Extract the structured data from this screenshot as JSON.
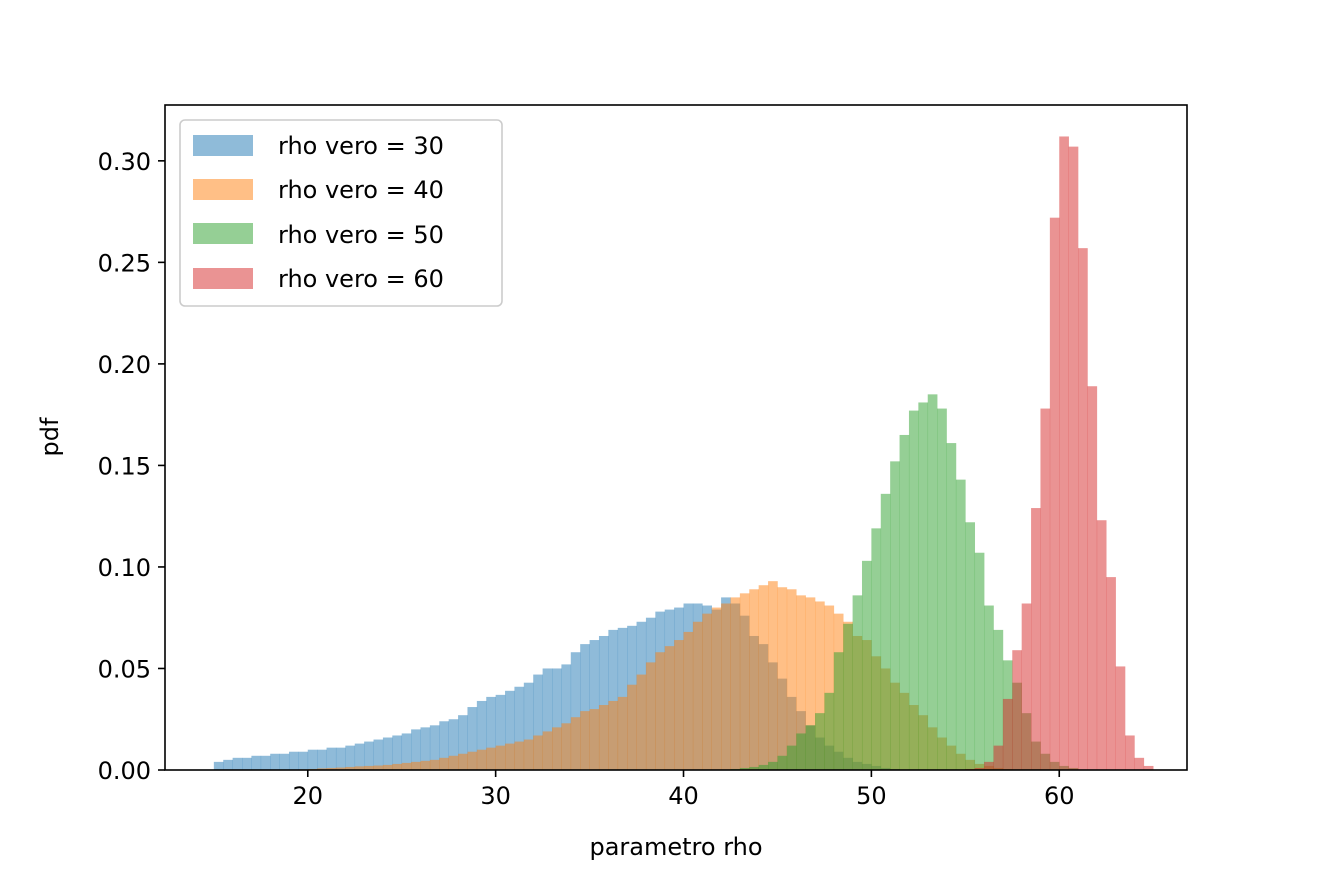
{
  "chart_data": {
    "type": "histogram",
    "title": "",
    "xlabel": "parametro rho",
    "ylabel": "pdf",
    "xlim": [
      12.4,
      66.8
    ],
    "ylim": [
      0,
      0.3275
    ],
    "xticks": [
      20,
      30,
      40,
      50,
      60
    ],
    "xtick_labels": [
      "20",
      "30",
      "40",
      "50",
      "60"
    ],
    "yticks": [
      0.0,
      0.05,
      0.1,
      0.15,
      0.2,
      0.25,
      0.3
    ],
    "ytick_labels": [
      "0.00",
      "0.05",
      "0.10",
      "0.15",
      "0.20",
      "0.25",
      "0.30"
    ],
    "grid": false,
    "legend_position": "upper left",
    "alpha": 0.5,
    "series": [
      {
        "name": "rho vero = 30",
        "color": "#1f77b4",
        "x_start": 15.0,
        "bin_width": 0.5,
        "values": [
          0.004,
          0.005,
          0.006,
          0.006,
          0.007,
          0.007,
          0.008,
          0.008,
          0.009,
          0.009,
          0.01,
          0.01,
          0.011,
          0.011,
          0.012,
          0.013,
          0.014,
          0.015,
          0.016,
          0.017,
          0.018,
          0.02,
          0.021,
          0.022,
          0.024,
          0.025,
          0.027,
          0.031,
          0.034,
          0.036,
          0.037,
          0.039,
          0.041,
          0.043,
          0.047,
          0.05,
          0.05,
          0.052,
          0.058,
          0.062,
          0.064,
          0.066,
          0.069,
          0.07,
          0.071,
          0.073,
          0.075,
          0.078,
          0.079,
          0.08,
          0.082,
          0.082,
          0.081,
          0.079,
          0.085,
          0.082,
          0.076,
          0.066,
          0.062,
          0.053,
          0.045,
          0.036,
          0.029,
          0.022,
          0.016,
          0.012,
          0.009,
          0.006,
          0.004,
          0.003,
          0.002,
          0.001,
          0.0005
        ]
      },
      {
        "name": "rho vero = 40",
        "color": "#ff7f0e",
        "x_start": 19.5,
        "bin_width": 0.5,
        "values": [
          0.0003,
          0.0005,
          0.0008,
          0.001,
          0.0012,
          0.0015,
          0.0018,
          0.002,
          0.0022,
          0.0025,
          0.003,
          0.0035,
          0.004,
          0.0045,
          0.005,
          0.006,
          0.007,
          0.008,
          0.009,
          0.01,
          0.011,
          0.012,
          0.013,
          0.014,
          0.015,
          0.017,
          0.019,
          0.021,
          0.023,
          0.026,
          0.029,
          0.03,
          0.032,
          0.034,
          0.036,
          0.042,
          0.047,
          0.053,
          0.058,
          0.061,
          0.064,
          0.068,
          0.073,
          0.077,
          0.08,
          0.082,
          0.085,
          0.087,
          0.089,
          0.091,
          0.093,
          0.09,
          0.089,
          0.086,
          0.085,
          0.083,
          0.081,
          0.077,
          0.073,
          0.066,
          0.064,
          0.056,
          0.05,
          0.043,
          0.038,
          0.032,
          0.027,
          0.021,
          0.016,
          0.012,
          0.008,
          0.005,
          0.003,
          0.002,
          0.001,
          0.0005
        ]
      },
      {
        "name": "rho vero = 50",
        "color": "#2ca02c",
        "x_start": 42.5,
        "bin_width": 0.5,
        "values": [
          0.0005,
          0.001,
          0.0015,
          0.0025,
          0.004,
          0.007,
          0.012,
          0.018,
          0.022,
          0.028,
          0.038,
          0.058,
          0.072,
          0.086,
          0.103,
          0.119,
          0.136,
          0.152,
          0.165,
          0.177,
          0.181,
          0.185,
          0.178,
          0.161,
          0.143,
          0.122,
          0.107,
          0.081,
          0.069,
          0.054,
          0.043,
          0.028,
          0.014,
          0.008,
          0.004,
          0.002,
          0.001
        ]
      },
      {
        "name": "rho vero = 60",
        "color": "#d62728",
        "x_start": 55.0,
        "bin_width": 0.5,
        "values": [
          0.0005,
          0.001,
          0.004,
          0.012,
          0.035,
          0.059,
          0.082,
          0.129,
          0.178,
          0.272,
          0.312,
          0.307,
          0.257,
          0.189,
          0.123,
          0.095,
          0.051,
          0.017,
          0.006,
          0.002
        ]
      }
    ]
  }
}
